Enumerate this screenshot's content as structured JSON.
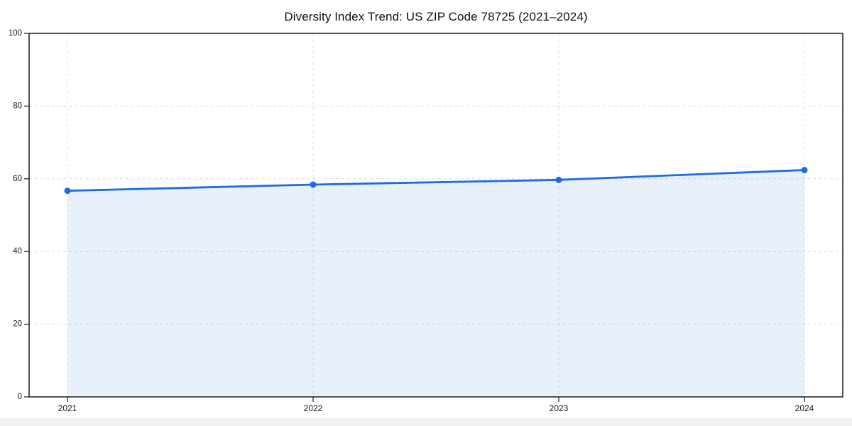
{
  "chart_data": {
    "type": "line",
    "title": "Diversity Index Trend: US ZIP Code 78725 (2021–2024)",
    "x": [
      "2021",
      "2022",
      "2023",
      "2024"
    ],
    "series": [
      {
        "name": "Diversity Index",
        "values": [
          56.7,
          58.4,
          59.7,
          62.4
        ]
      }
    ],
    "xlabel": "",
    "ylabel": "",
    "ylim": [
      0,
      100
    ],
    "yticks": [
      0,
      20,
      40,
      60,
      80,
      100
    ],
    "grid": true,
    "grid_style": "dashed",
    "legend": false,
    "marker": "circle",
    "area_fill": true,
    "colors": {
      "line": "#1b6ce5",
      "marker": "#1b6ce5",
      "fill": "rgba(27,108,229,0.10)",
      "grid": "#dcdcdc",
      "axis": "#1a1a1a",
      "tick_label": "#1a1a1a",
      "title": "#111111",
      "background": "#ffffff",
      "footer_strip": "#f1f1f1"
    }
  }
}
